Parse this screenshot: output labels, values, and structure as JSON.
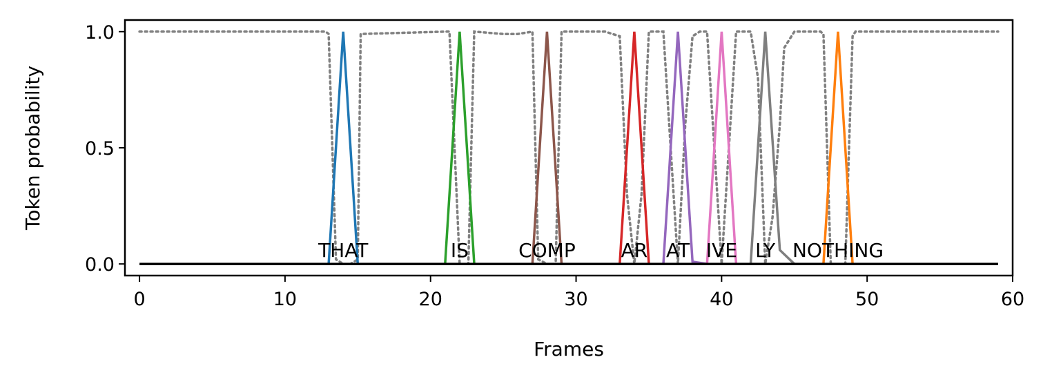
{
  "chart_data": {
    "type": "line",
    "xlabel": "Frames",
    "ylabel": "Token probability",
    "xlim": [
      -1,
      60
    ],
    "ylim": [
      -0.05,
      1.05
    ],
    "xticks": [
      0,
      10,
      20,
      30,
      40,
      50,
      60
    ],
    "yticks": [
      0.0,
      0.5,
      1.0
    ],
    "xtick_labels": [
      "0",
      "10",
      "20",
      "30",
      "40",
      "50",
      "60"
    ],
    "ytick_labels": [
      "0.0",
      "0.5",
      "1.0"
    ],
    "grid": false,
    "legend": "none",
    "colors": {
      "blank": "#808080",
      "baseline": "#000000",
      "THAT": "#1f77b4",
      "IS": "#2ca02c",
      "COMP": "#8c564b",
      "AR": "#d62728",
      "AT": "#9467bd",
      "IVE": "#e377c2",
      "LY": "#7f7f7f",
      "NOTHING": "#ff7f0e"
    },
    "baseline": {
      "x": [
        0,
        59
      ],
      "y": [
        0,
        0
      ]
    },
    "blank_series": {
      "x": [
        0,
        12.8,
        13,
        13.5,
        14,
        14.5,
        15,
        15.2,
        21,
        21.3,
        22,
        22.6,
        23,
        25,
        26,
        27,
        27.4,
        28,
        28.6,
        29,
        31,
        32,
        33,
        33.5,
        34,
        34.5,
        35,
        36,
        37,
        37.5,
        38,
        38.5,
        39,
        40,
        41,
        42,
        42.5,
        43,
        43.5,
        44,
        44.3,
        45,
        46,
        46.8,
        47,
        47.5,
        48,
        48.5,
        49,
        49.2,
        59
      ],
      "y": [
        1,
        1,
        0.99,
        0.02,
        0,
        0,
        0.02,
        0.99,
        1,
        1,
        0,
        0,
        1,
        0.99,
        0.99,
        1,
        0.02,
        0,
        0,
        1,
        1,
        1,
        0.98,
        0.3,
        0,
        0.3,
        1,
        1,
        0,
        0.6,
        0.98,
        1,
        1,
        0,
        1,
        1,
        0.8,
        0,
        0.2,
        0.6,
        0.93,
        1,
        1,
        1,
        0.99,
        0,
        0,
        0,
        0.98,
        1,
        1
      ]
    },
    "tokens": [
      {
        "name": "THAT",
        "x": [
          13,
          14,
          15
        ],
        "y": [
          0,
          1,
          0
        ],
        "label_x": 14
      },
      {
        "name": "IS",
        "x": [
          21,
          22,
          23
        ],
        "y": [
          0,
          1,
          0
        ],
        "label_x": 22
      },
      {
        "name": "COMP",
        "x": [
          27,
          28,
          29
        ],
        "y": [
          0,
          1,
          0
        ],
        "label_x": 28
      },
      {
        "name": "AR",
        "x": [
          33,
          34,
          35
        ],
        "y": [
          0,
          1,
          0
        ],
        "label_x": 34
      },
      {
        "name": "AT",
        "x": [
          36,
          37,
          38,
          39
        ],
        "y": [
          0,
          1,
          0.01,
          0
        ],
        "label_x": 37
      },
      {
        "name": "IVE",
        "x": [
          39,
          40,
          41
        ],
        "y": [
          0,
          1,
          0
        ],
        "label_x": 40
      },
      {
        "name": "LY",
        "x": [
          42,
          43,
          44,
          45
        ],
        "y": [
          0,
          1,
          0.06,
          0
        ],
        "label_x": 43
      },
      {
        "name": "NOTHING",
        "x": [
          47,
          48,
          49
        ],
        "y": [
          0,
          1,
          0
        ],
        "label_x": 48
      }
    ],
    "token_label_y": 0.03
  }
}
